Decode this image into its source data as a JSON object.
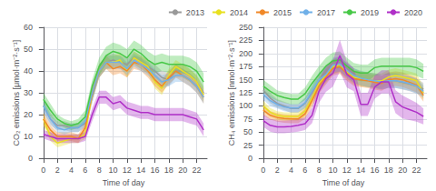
{
  "chart_data": [
    {
      "type": "line",
      "xlabel": "Time of day",
      "ylabel": "CO₂ emissions [μmol·m⁻²·s⁻¹]",
      "x": [
        0,
        1,
        2,
        3,
        4,
        5,
        6,
        7,
        8,
        9,
        10,
        11,
        12,
        13,
        14,
        15,
        16,
        17,
        18,
        19,
        20,
        21,
        22,
        23
      ],
      "xlim": [
        -0.5,
        23.5
      ],
      "xticks": [
        0,
        2,
        4,
        6,
        8,
        10,
        12,
        14,
        16,
        18,
        20,
        22
      ],
      "ylim": [
        0,
        60
      ],
      "yticks": [
        0,
        10,
        20,
        30,
        40,
        50,
        60
      ],
      "grid": true,
      "legend": "upper right",
      "series": [
        {
          "name": "2013",
          "color": "#999999",
          "values": [
            24,
            18,
            15,
            15,
            14,
            14,
            16,
            28,
            40,
            44,
            45,
            44,
            43,
            46,
            44,
            42,
            40,
            37,
            36,
            40,
            40,
            38,
            35,
            30
          ],
          "std": [
            3,
            3,
            2,
            2,
            2,
            2,
            2,
            3,
            3,
            3,
            3,
            3,
            3,
            3,
            3,
            3,
            3,
            3,
            3,
            3,
            3,
            3,
            3,
            3
          ]
        },
        {
          "name": "2014",
          "color": "#e8e020",
          "values": [
            18,
            10,
            7,
            8,
            9,
            9,
            11,
            30,
            40,
            44,
            44,
            45,
            40,
            46,
            44,
            42,
            35,
            32,
            38,
            42,
            40,
            38,
            35,
            29
          ],
          "std": [
            3,
            2,
            2,
            2,
            2,
            2,
            2,
            3,
            3,
            3,
            3,
            3,
            3,
            3,
            3,
            3,
            3,
            3,
            3,
            3,
            3,
            3,
            3,
            3
          ]
        },
        {
          "name": "2015",
          "color": "#f08828",
          "values": [
            18,
            13,
            10,
            10,
            10,
            9,
            14,
            30,
            40,
            44,
            41,
            42,
            40,
            44,
            43,
            40,
            36,
            33,
            37,
            40,
            38,
            36,
            33,
            28
          ],
          "std": [
            3,
            2,
            2,
            2,
            2,
            2,
            2,
            3,
            3,
            3,
            3,
            3,
            3,
            3,
            3,
            3,
            3,
            3,
            3,
            3,
            3,
            3,
            3,
            3
          ]
        },
        {
          "name": "2017",
          "color": "#70b0e8",
          "values": [
            24,
            18,
            14,
            13,
            14,
            14,
            17,
            30,
            40,
            44,
            44,
            44,
            41,
            45,
            43,
            41,
            38,
            35,
            36,
            38,
            38,
            36,
            33,
            28
          ],
          "std": [
            3,
            2,
            2,
            2,
            2,
            2,
            2,
            3,
            3,
            3,
            3,
            3,
            3,
            3,
            3,
            3,
            3,
            3,
            3,
            3,
            3,
            3,
            3,
            3
          ]
        },
        {
          "name": "2019",
          "color": "#48c848",
          "values": [
            27,
            22,
            18,
            16,
            15,
            16,
            19,
            33,
            42,
            47,
            49,
            48,
            46,
            50,
            48,
            45,
            43,
            44,
            43,
            43,
            43,
            42,
            40,
            35
          ],
          "std": [
            3,
            3,
            2,
            2,
            2,
            2,
            3,
            3,
            4,
            4,
            4,
            4,
            4,
            4,
            4,
            4,
            4,
            4,
            4,
            4,
            4,
            4,
            4,
            4
          ]
        },
        {
          "name": "2020",
          "color": "#b030c8",
          "values": [
            11,
            10,
            9,
            9,
            9,
            9,
            10,
            20,
            28,
            28,
            25,
            26,
            23,
            22,
            21,
            21,
            20,
            20,
            20,
            20,
            20,
            19,
            18,
            13
          ],
          "std": [
            2,
            2,
            2,
            2,
            2,
            2,
            2,
            3,
            3,
            3,
            3,
            3,
            3,
            3,
            3,
            3,
            3,
            3,
            3,
            3,
            3,
            3,
            3,
            3
          ]
        }
      ]
    },
    {
      "type": "line",
      "xlabel": "Time of day",
      "ylabel": "CH₄ emissions [nmol·m⁻²·s⁻¹]",
      "x": [
        0,
        1,
        2,
        3,
        4,
        5,
        6,
        7,
        8,
        9,
        10,
        11,
        12,
        13,
        14,
        15,
        16,
        17,
        18,
        19,
        20,
        21,
        22,
        23
      ],
      "xlim": [
        -0.5,
        23.5
      ],
      "xticks": [
        0,
        2,
        4,
        6,
        8,
        10,
        12,
        14,
        16,
        18,
        20,
        22
      ],
      "ylim": [
        0,
        250
      ],
      "yticks": [
        0,
        25,
        50,
        75,
        100,
        125,
        150,
        175,
        200,
        225,
        250
      ],
      "grid": true,
      "series": [
        {
          "name": "2013",
          "color": "#999999",
          "values": [
            130,
            115,
            105,
            100,
            95,
            95,
            105,
            125,
            148,
            160,
            175,
            180,
            168,
            158,
            152,
            150,
            148,
            145,
            148,
            148,
            145,
            142,
            138,
            132
          ],
          "std": [
            10,
            10,
            8,
            8,
            8,
            8,
            10,
            12,
            14,
            14,
            14,
            14,
            14,
            14,
            14,
            14,
            14,
            14,
            14,
            14,
            14,
            14,
            14,
            12
          ]
        },
        {
          "name": "2014",
          "color": "#e8e020",
          "values": [
            100,
            88,
            82,
            80,
            80,
            80,
            90,
            115,
            143,
            158,
            175,
            178,
            165,
            155,
            152,
            150,
            148,
            148,
            155,
            158,
            155,
            152,
            148,
            125
          ],
          "std": [
            10,
            8,
            8,
            8,
            8,
            8,
            10,
            12,
            14,
            14,
            14,
            14,
            14,
            14,
            14,
            14,
            14,
            14,
            14,
            14,
            14,
            14,
            14,
            12
          ]
        },
        {
          "name": "2015",
          "color": "#f08828",
          "values": [
            92,
            82,
            78,
            76,
            75,
            75,
            85,
            110,
            138,
            155,
            172,
            175,
            162,
            152,
            150,
            148,
            145,
            143,
            150,
            152,
            150,
            145,
            140,
            120
          ],
          "std": [
            10,
            8,
            8,
            8,
            8,
            8,
            10,
            12,
            14,
            14,
            14,
            14,
            14,
            14,
            14,
            14,
            14,
            14,
            14,
            14,
            14,
            14,
            14,
            12
          ]
        },
        {
          "name": "2017",
          "color": "#70b0e8",
          "values": [
            122,
            110,
            103,
            98,
            96,
            96,
            106,
            128,
            150,
            160,
            178,
            180,
            168,
            158,
            153,
            150,
            148,
            146,
            148,
            148,
            146,
            143,
            138,
            128
          ],
          "std": [
            10,
            10,
            8,
            8,
            8,
            8,
            10,
            12,
            14,
            14,
            14,
            14,
            14,
            14,
            14,
            14,
            14,
            14,
            14,
            14,
            14,
            14,
            14,
            12
          ]
        },
        {
          "name": "2019",
          "color": "#48c848",
          "values": [
            138,
            128,
            120,
            116,
            113,
            113,
            123,
            143,
            160,
            176,
            186,
            188,
            176,
            166,
            163,
            163,
            173,
            176,
            176,
            176,
            176,
            176,
            173,
            166
          ],
          "std": [
            12,
            12,
            10,
            10,
            10,
            10,
            12,
            14,
            16,
            16,
            16,
            16,
            16,
            16,
            16,
            16,
            16,
            16,
            16,
            16,
            16,
            16,
            16,
            14
          ]
        },
        {
          "name": "2020",
          "color": "#b030c8",
          "values": [
            72,
            63,
            60,
            60,
            61,
            63,
            66,
            82,
            128,
            152,
            162,
            196,
            160,
            150,
            103,
            103,
            136,
            146,
            146,
            108,
            98,
            93,
            88,
            80
          ],
          "std": [
            12,
            12,
            12,
            12,
            12,
            12,
            12,
            15,
            22,
            25,
            25,
            30,
            25,
            22,
            22,
            22,
            22,
            22,
            22,
            22,
            22,
            20,
            18,
            15
          ]
        }
      ]
    }
  ]
}
